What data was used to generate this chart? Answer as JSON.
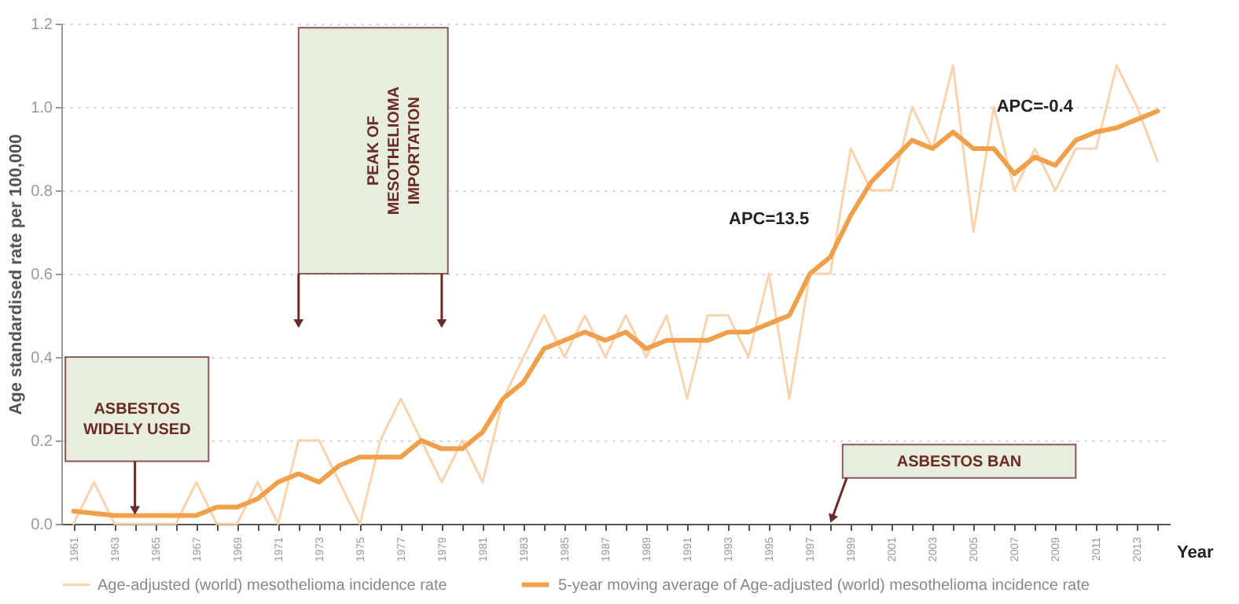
{
  "chart_data": {
    "type": "line",
    "ylabel": "Age standardised rate per 100,000",
    "xlabel": "Year",
    "x": [
      1961,
      1962,
      1963,
      1964,
      1965,
      1966,
      1967,
      1968,
      1969,
      1970,
      1971,
      1972,
      1973,
      1974,
      1975,
      1976,
      1977,
      1978,
      1979,
      1980,
      1981,
      1982,
      1983,
      1984,
      1985,
      1986,
      1987,
      1988,
      1989,
      1990,
      1991,
      1992,
      1993,
      1994,
      1995,
      1996,
      1997,
      1998,
      1999,
      2000,
      2001,
      2002,
      2003,
      2004,
      2005,
      2006,
      2007,
      2008,
      2009,
      2010,
      2011,
      2012,
      2013,
      2014
    ],
    "series": [
      {
        "name": "Age-adjusted (world) mesothelioma incidence rate",
        "color": "#f8d3ad",
        "values": [
          0.0,
          0.1,
          0.0,
          0.0,
          0.0,
          0.0,
          0.1,
          0.0,
          0.0,
          0.1,
          0.0,
          0.2,
          0.2,
          0.1,
          0.0,
          0.2,
          0.3,
          0.2,
          0.1,
          0.2,
          0.1,
          0.3,
          0.4,
          0.5,
          0.4,
          0.5,
          0.4,
          0.5,
          0.4,
          0.5,
          0.3,
          0.5,
          0.5,
          0.4,
          0.6,
          0.3,
          0.6,
          0.6,
          0.9,
          0.8,
          0.8,
          1.0,
          0.9,
          1.1,
          0.7,
          1.0,
          0.8,
          0.9,
          0.8,
          0.9,
          0.9,
          1.1,
          1.0,
          0.87
        ]
      },
      {
        "name": "5-year moving average of Age-adjusted (world) mesothelioma incidence rate",
        "color": "#f0a04b",
        "values": [
          0.03,
          0.025,
          0.02,
          0.02,
          0.02,
          0.02,
          0.02,
          0.04,
          0.04,
          0.06,
          0.1,
          0.12,
          0.1,
          0.14,
          0.16,
          0.16,
          0.16,
          0.2,
          0.18,
          0.18,
          0.22,
          0.3,
          0.34,
          0.42,
          0.44,
          0.46,
          0.44,
          0.46,
          0.42,
          0.44,
          0.44,
          0.44,
          0.46,
          0.46,
          0.48,
          0.5,
          0.6,
          0.64,
          0.74,
          0.82,
          0.87,
          0.92,
          0.9,
          0.94,
          0.9,
          0.9,
          0.84,
          0.88,
          0.86,
          0.92,
          0.94,
          0.95,
          0.97,
          0.99
        ]
      }
    ],
    "xlim": [
      1960.4,
      2014.6
    ],
    "xticks": [
      1961,
      {
        "value": 1962,
        "label": null
      },
      1963,
      {
        "value": 1964,
        "label": null
      },
      1965,
      {
        "value": 1966,
        "label": null
      },
      1967,
      {
        "value": 1968,
        "label": null
      },
      1969,
      {
        "value": 1970,
        "label": null
      },
      1971,
      {
        "value": 1972,
        "label": null
      },
      1973,
      {
        "value": 1974,
        "label": null
      },
      1975,
      {
        "value": 1976,
        "label": null
      },
      1977,
      {
        "value": 1978,
        "label": null
      },
      1979,
      {
        "value": 1980,
        "label": null
      },
      1981,
      {
        "value": 1982,
        "label": null
      },
      1983,
      {
        "value": 1984,
        "label": null
      },
      1985,
      {
        "value": 1986,
        "label": null
      },
      1987,
      {
        "value": 1988,
        "label": null
      },
      1989,
      {
        "value": 1990,
        "label": null
      },
      1991,
      {
        "value": 1992,
        "label": null
      },
      1993,
      {
        "value": 1994,
        "label": null
      },
      1995,
      {
        "value": 1996,
        "label": null
      },
      1997,
      {
        "value": 1998,
        "label": null
      },
      1999,
      {
        "value": 2000,
        "label": null
      },
      2001,
      {
        "value": 2002,
        "label": null
      },
      2003,
      {
        "value": 2004,
        "label": null
      },
      2005,
      {
        "value": 2006,
        "label": null
      },
      2007,
      {
        "value": 2008,
        "label": null
      },
      2009,
      {
        "value": 2010,
        "label": null
      },
      2011,
      {
        "value": 2012,
        "label": null
      },
      2013,
      {
        "value": 2014,
        "label": null
      }
    ],
    "ylim": [
      0,
      1.2
    ],
    "yticks": [
      {
        "value": 0,
        "label": "0.0"
      },
      {
        "value": 0.2,
        "label": "0.2"
      },
      {
        "value": 0.4,
        "label": "0.4"
      },
      {
        "value": 0.6,
        "label": "0.6"
      },
      {
        "value": 0.8,
        "label": "0.8"
      },
      {
        "value": 1,
        "label": "1.0"
      },
      {
        "value": 1.2,
        "label": "1.2"
      }
    ],
    "grid": "y",
    "legend": "bottom",
    "line_style": "solid",
    "annotations": [
      "ASBESTOS WIDELY USED",
      "PEAK OF MESOTHELIOMA IMPORTATION",
      "ASBESTOS BAN",
      "APC=13.5",
      "APC=-0.4"
    ]
  }
}
